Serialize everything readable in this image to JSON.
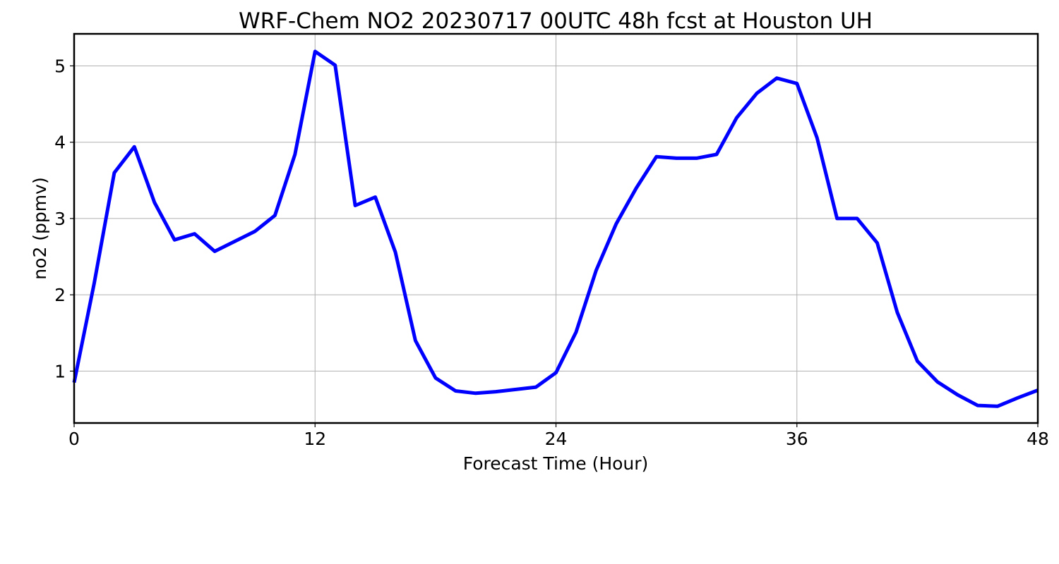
{
  "chart_data": {
    "type": "line",
    "title": "WRF-Chem NO2  20230717 00UTC 48h fcst at Houston UH",
    "xlabel": "Forecast Time (Hour)",
    "ylabel": "no2  (ppmv)",
    "xlim": [
      0,
      48
    ],
    "ylim": [
      0.32,
      5.42
    ],
    "xticks": [
      0,
      12,
      24,
      36,
      48
    ],
    "yticks": [
      1,
      2,
      3,
      4,
      5
    ],
    "grid": true,
    "line_color": "#0000ff",
    "series": [
      {
        "x": [
          0,
          1,
          2,
          3,
          4,
          5,
          6,
          7,
          8,
          9,
          10,
          11,
          12,
          13,
          14,
          15,
          16,
          17,
          18,
          19,
          20,
          21,
          22,
          23,
          24,
          25,
          26,
          27,
          28,
          29,
          30,
          31,
          32,
          33,
          34,
          35,
          36,
          37,
          38,
          39,
          40,
          41,
          42,
          43,
          44,
          45,
          46,
          47,
          48
        ],
        "values": [
          0.85,
          2.15,
          3.6,
          3.94,
          3.21,
          2.72,
          2.8,
          2.57,
          2.7,
          2.83,
          3.04,
          3.84,
          5.19,
          5.01,
          3.17,
          3.28,
          2.56,
          1.4,
          0.91,
          0.74,
          0.71,
          0.73,
          0.76,
          0.79,
          0.98,
          1.51,
          2.32,
          2.93,
          3.4,
          3.81,
          3.79,
          3.79,
          3.84,
          4.32,
          4.64,
          4.84,
          4.77,
          4.06,
          3.0,
          3.0,
          2.68,
          1.77,
          1.13,
          0.86,
          0.69,
          0.55,
          0.54,
          0.65,
          0.75
        ]
      }
    ]
  }
}
